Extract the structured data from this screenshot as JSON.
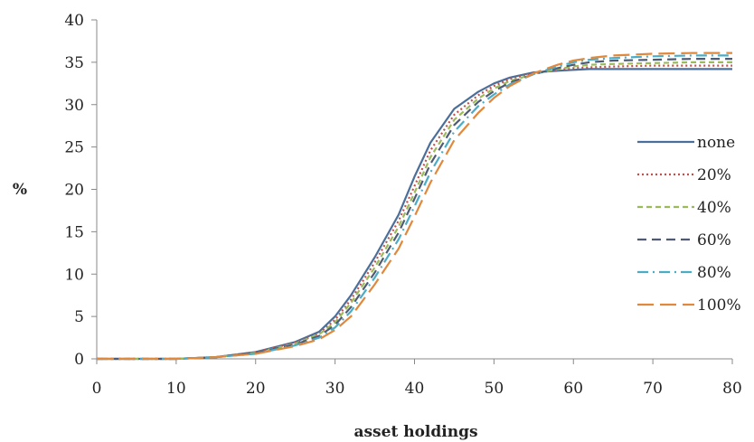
{
  "chart_data": {
    "type": "line",
    "title": "",
    "xlabel": "asset holdings",
    "ylabel": "%",
    "xlim": [
      0,
      80
    ],
    "ylim": [
      0,
      40
    ],
    "x_ticks": [
      0,
      10,
      20,
      30,
      40,
      50,
      60,
      70,
      80
    ],
    "y_ticks": [
      0,
      5,
      10,
      15,
      20,
      25,
      30,
      35,
      40
    ],
    "grid": false,
    "legend_position": "right",
    "x": [
      0,
      5,
      10,
      15,
      20,
      25,
      28,
      30,
      32,
      35,
      38,
      40,
      42,
      45,
      48,
      50,
      52,
      55,
      58,
      60,
      62,
      65,
      70,
      75,
      80
    ],
    "series": [
      {
        "name": "none",
        "color": "#4a6f9a",
        "dash": "solid",
        "values": [
          0,
          0,
          0,
          0.2,
          0.8,
          2.0,
          3.2,
          5.0,
          7.5,
          12.0,
          17.0,
          21.5,
          25.5,
          29.5,
          31.5,
          32.5,
          33.2,
          33.8,
          34.0,
          34.1,
          34.2,
          34.2,
          34.2,
          34.2,
          34.2
        ]
      },
      {
        "name": "20%",
        "color": "#c0504d",
        "dash": "dot",
        "values": [
          0,
          0,
          0,
          0.2,
          0.8,
          1.9,
          3.0,
          4.6,
          7.0,
          11.4,
          16.3,
          20.4,
          24.6,
          28.8,
          31.1,
          32.2,
          33.0,
          33.7,
          34.1,
          34.3,
          34.4,
          34.5,
          34.6,
          34.6,
          34.6
        ]
      },
      {
        "name": "40%",
        "color": "#9bbb59",
        "dash": "shortdash",
        "values": [
          0,
          0,
          0,
          0.2,
          0.7,
          1.8,
          2.9,
          4.3,
          6.6,
          10.8,
          15.6,
          19.6,
          23.8,
          28.2,
          30.7,
          31.9,
          32.8,
          33.6,
          34.2,
          34.5,
          34.7,
          34.8,
          34.9,
          35.0,
          35.0
        ]
      },
      {
        "name": "60%",
        "color": "#4f5b74",
        "dash": "dash",
        "values": [
          0,
          0,
          0,
          0.2,
          0.7,
          1.7,
          2.7,
          4.0,
          6.1,
          10.2,
          14.9,
          18.9,
          23.0,
          27.6,
          30.3,
          31.6,
          32.6,
          33.6,
          34.3,
          34.7,
          35.0,
          35.2,
          35.3,
          35.4,
          35.4
        ]
      },
      {
        "name": "80%",
        "color": "#4bacc6",
        "dash": "dashdot",
        "values": [
          0,
          0,
          0,
          0.2,
          0.6,
          1.6,
          2.5,
          3.7,
          5.6,
          9.6,
          14.1,
          18.0,
          22.0,
          26.8,
          29.8,
          31.2,
          32.4,
          33.6,
          34.5,
          35.0,
          35.3,
          35.5,
          35.7,
          35.8,
          35.8
        ]
      },
      {
        "name": "100%",
        "color": "#e0883c",
        "dash": "longdash",
        "values": [
          0,
          0,
          0,
          0.2,
          0.6,
          1.5,
          2.3,
          3.4,
          5.0,
          8.8,
          13.0,
          16.8,
          20.8,
          25.8,
          29.0,
          30.8,
          32.2,
          33.7,
          34.7,
          35.2,
          35.5,
          35.8,
          36.0,
          36.1,
          36.1
        ]
      }
    ]
  }
}
